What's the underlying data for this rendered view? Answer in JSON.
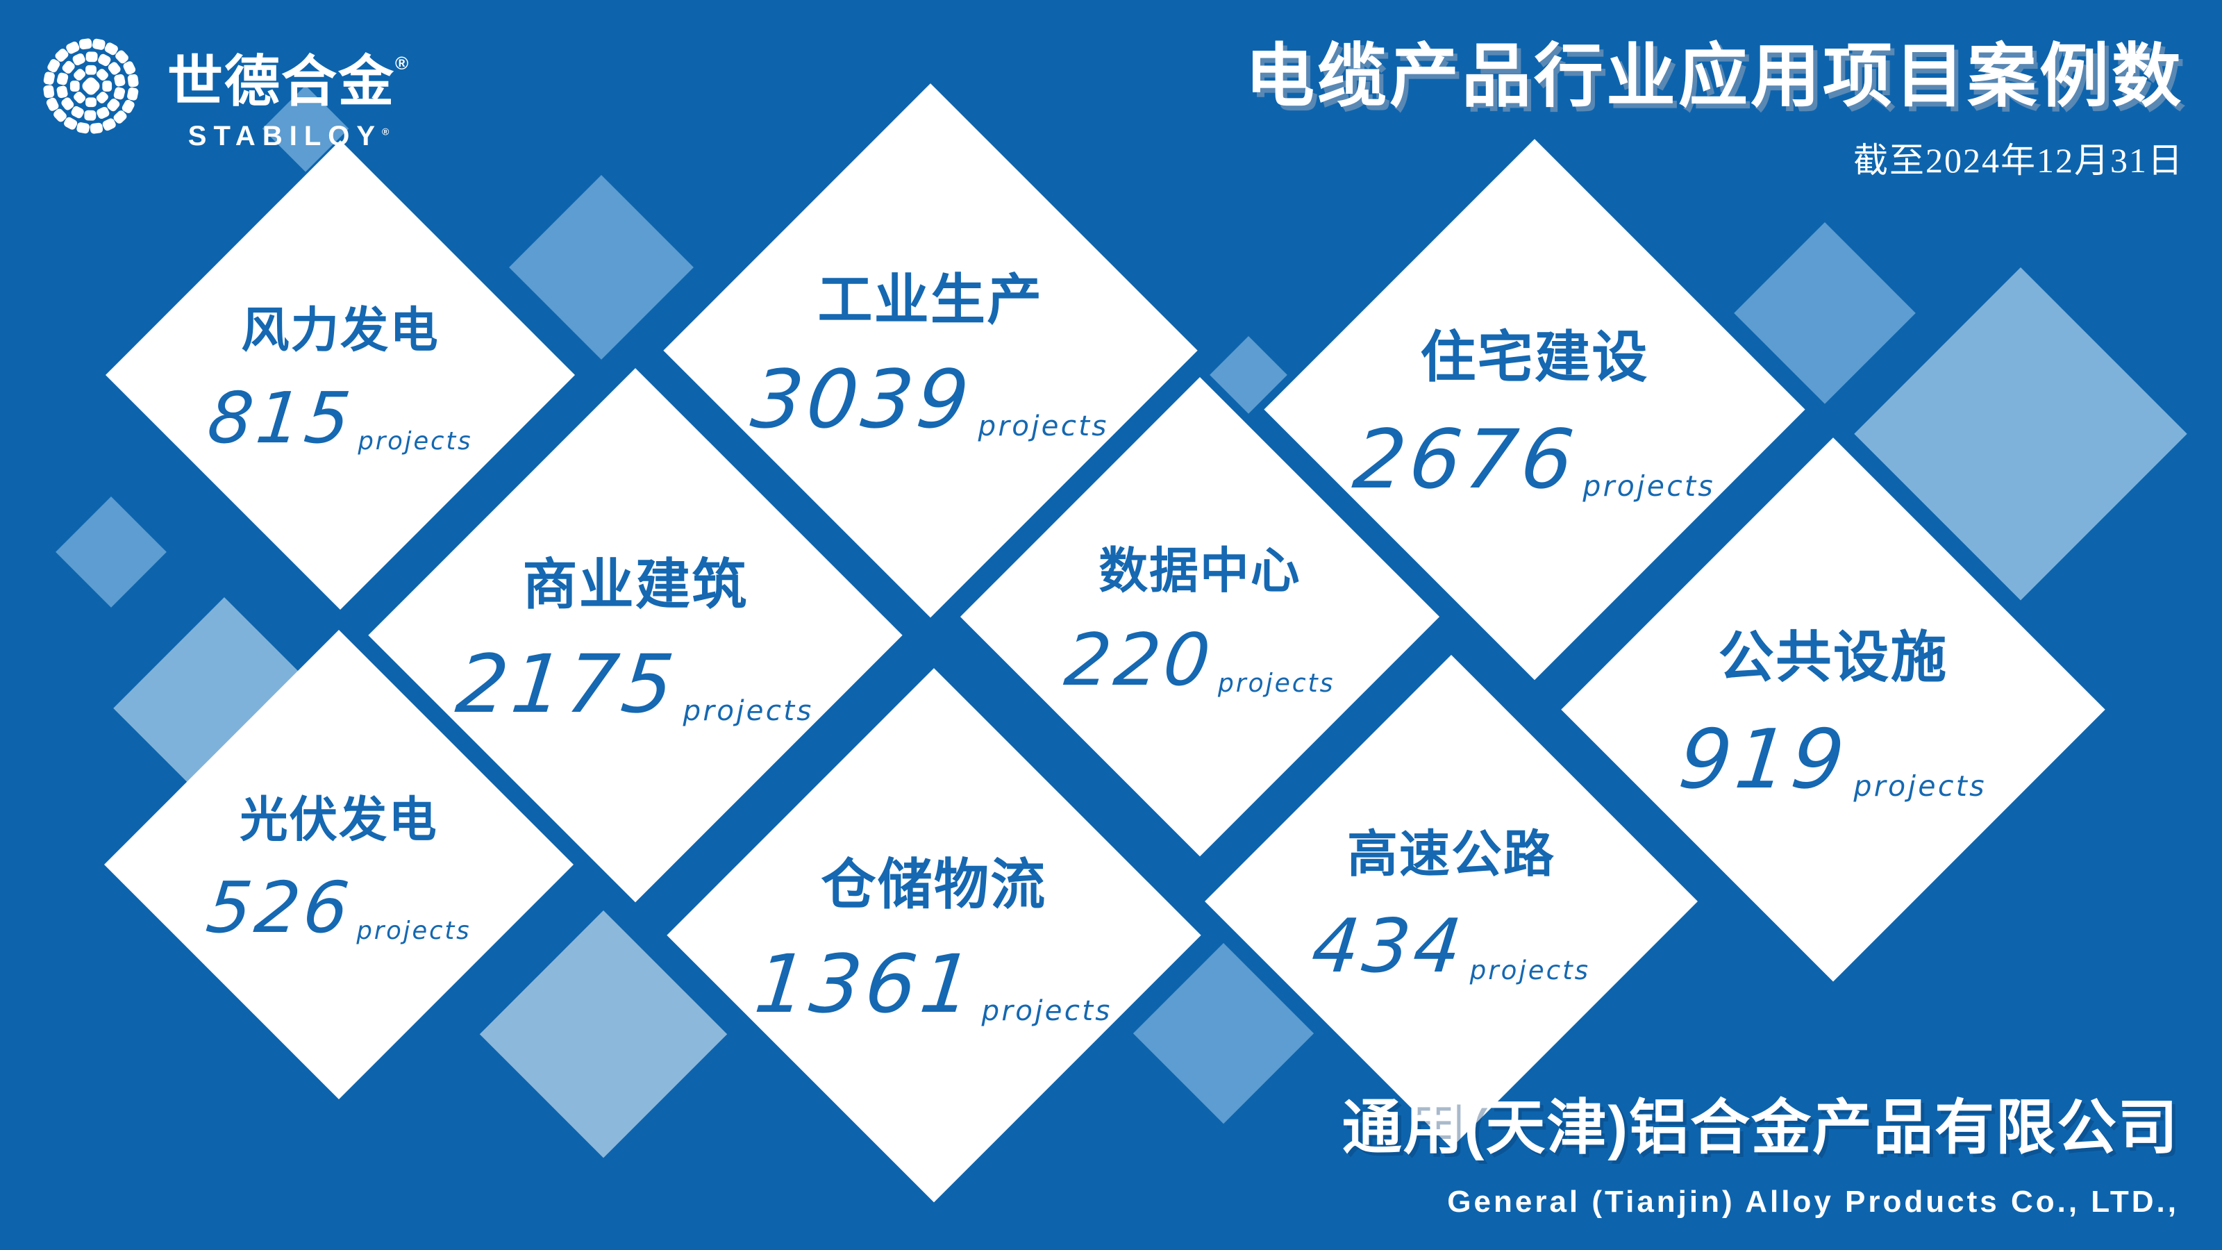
{
  "brand": {
    "logo_icon": "cable-cross-section-icon",
    "name_cn": "世德合金",
    "name_cn_registered": "®",
    "name_en": "STABILOY",
    "name_en_registered": "®"
  },
  "header": {
    "title": "电缆产品行业应用项目案例数",
    "subtitle": "截至2024年12月31日"
  },
  "sectors": [
    {
      "id": "wind",
      "label": "风力发电",
      "value": "815",
      "unit": "projects"
    },
    {
      "id": "industrial",
      "label": "工业生产",
      "value": "3039",
      "unit": "projects"
    },
    {
      "id": "residential",
      "label": "住宅建设",
      "value": "2676",
      "unit": "projects"
    },
    {
      "id": "commercial",
      "label": "商业建筑",
      "value": "2175",
      "unit": "projects"
    },
    {
      "id": "datacenter",
      "label": "数据中心",
      "value": "220",
      "unit": "projects"
    },
    {
      "id": "public",
      "label": "公共设施",
      "value": "919",
      "unit": "projects"
    },
    {
      "id": "solar",
      "label": "光伏发电",
      "value": "526",
      "unit": "projects"
    },
    {
      "id": "warehouse",
      "label": "仓储物流",
      "value": "1361",
      "unit": "projects"
    },
    {
      "id": "highway",
      "label": "高速公路",
      "value": "434",
      "unit": "projects"
    }
  ],
  "footer": {
    "company_cn": "通用(天津)铝合金产品有限公司",
    "company_en": "General (Tianjin) Alloy Products Co., LTD.,"
  },
  "colors": {
    "background": "#0d64ad",
    "text_blue": "#1568b1",
    "diamond_medium": "#5d9dd1",
    "diamond_light": "#7fb2da",
    "diamond_lighter": "#8cb8dc",
    "white": "#ffffff"
  },
  "chart_data": {
    "type": "table",
    "title": "电缆产品行业应用项目案例数",
    "subtitle": "截至2024年12月31日",
    "categories": [
      "风力发电",
      "工业生产",
      "住宅建设",
      "商业建筑",
      "数据中心",
      "公共设施",
      "光伏发电",
      "仓储物流",
      "高速公路"
    ],
    "values": [
      815,
      3039,
      2676,
      2175,
      220,
      919,
      526,
      1361,
      434
    ],
    "unit": "projects",
    "legend_position": "none",
    "grid": false
  }
}
